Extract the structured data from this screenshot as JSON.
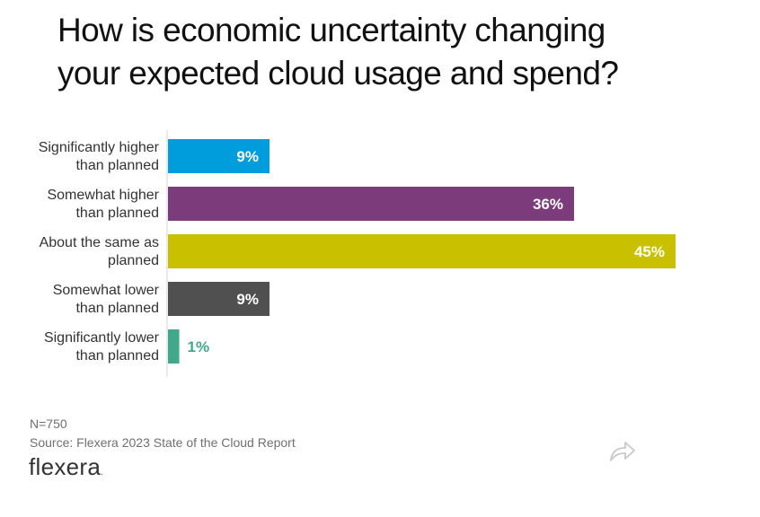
{
  "title_lines": [
    "How is economic uncertainty changing",
    "your expected cloud usage and spend?"
  ],
  "chart_data": {
    "type": "bar",
    "orientation": "horizontal",
    "title": "How is economic uncertainty changing your expected cloud usage and spend?",
    "categories": [
      [
        "Significantly higher",
        "than planned"
      ],
      [
        "Somewhat higher",
        "than planned"
      ],
      [
        "About the same as",
        "planned"
      ],
      [
        "Somewhat lower",
        "than planned"
      ],
      [
        "Significantly lower",
        "than planned"
      ]
    ],
    "values": [
      9,
      36,
      45,
      9,
      1
    ],
    "value_labels": [
      "9%",
      "36%",
      "45%",
      "9%",
      "1%"
    ],
    "colors": [
      "#009ddc",
      "#7c3c7c",
      "#c9c000",
      "#505050",
      "#3fa98a"
    ],
    "label_colors": [
      "#ffffff",
      "#ffffff",
      "#ffffff",
      "#ffffff",
      "#3fa98a"
    ],
    "xlim": [
      0,
      50
    ],
    "xlabel": "",
    "ylabel": "",
    "grid": false,
    "legend": "none"
  },
  "footer": {
    "n": "N=750",
    "source": "Source: Flexera 2023 State of the Cloud Report",
    "logo": "flexera",
    "logo_dot": "."
  },
  "share_icon": "share-arrow-icon"
}
